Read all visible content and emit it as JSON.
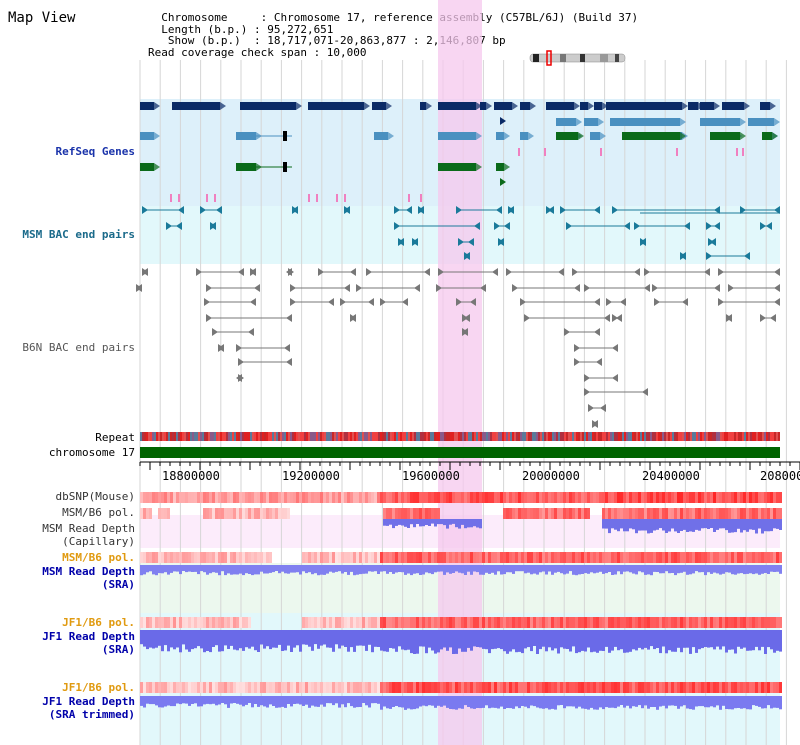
{
  "title": "Map View",
  "info_lines": [
    "  Chromosome     : Chromosome 17, reference assembly (C57BL/6J) (Build 37)",
    "  Length (b.p.) : 95,272,651",
    "   Show (b.p.)  : 18,717,071-20,863,877 : 2,146,807 bp",
    "Read coverage check span : 10,000"
  ],
  "tracks": {
    "refseq": "RefSeq Genes",
    "msm_bac": "MSM BAC end pairs",
    "b6n_bac": "B6N BAC end pairs",
    "repeat": "Repeat",
    "chromosome": "chromosome 17",
    "dbsnp": "dbSNP(Mouse)",
    "msm_b6_pol_1": "MSM/B6 pol.",
    "msm_depth_cap_1": "MSM Read Depth",
    "msm_depth_cap_2": "(Capillary)",
    "msm_b6_pol_2": "MSM/B6 pol.",
    "msm_depth_sra_1": "MSM Read Depth",
    "msm_depth_sra_2": "(SRA)",
    "jf1_b6_pol_1": "JF1/B6 pol.",
    "jf1_depth_1": "JF1 Read Depth",
    "jf1_depth_2": "(SRA)",
    "jf1_b6_pol_2": "JF1/B6 pol.",
    "jf1_depth_trim_1": "JF1 Read Depth",
    "jf1_depth_trim_2": "(SRA trimmed)"
  },
  "axis": {
    "ticks": [
      "18800000",
      "19200000",
      "19600000",
      "20000000",
      "20400000",
      "208000"
    ]
  },
  "colors": {
    "gene_dark": "#0a2a66",
    "gene_mid": "#4a90c0",
    "gene_green": "#0a6a1a",
    "highlight": "#f6c8ee",
    "label_blue": "#1a33aa",
    "label_teal": "#1a6a8a",
    "label_gray": "#555555",
    "label_orange": "#e09a10",
    "label_darkblue": "#0000aa",
    "chrom_green": "#006400"
  }
}
